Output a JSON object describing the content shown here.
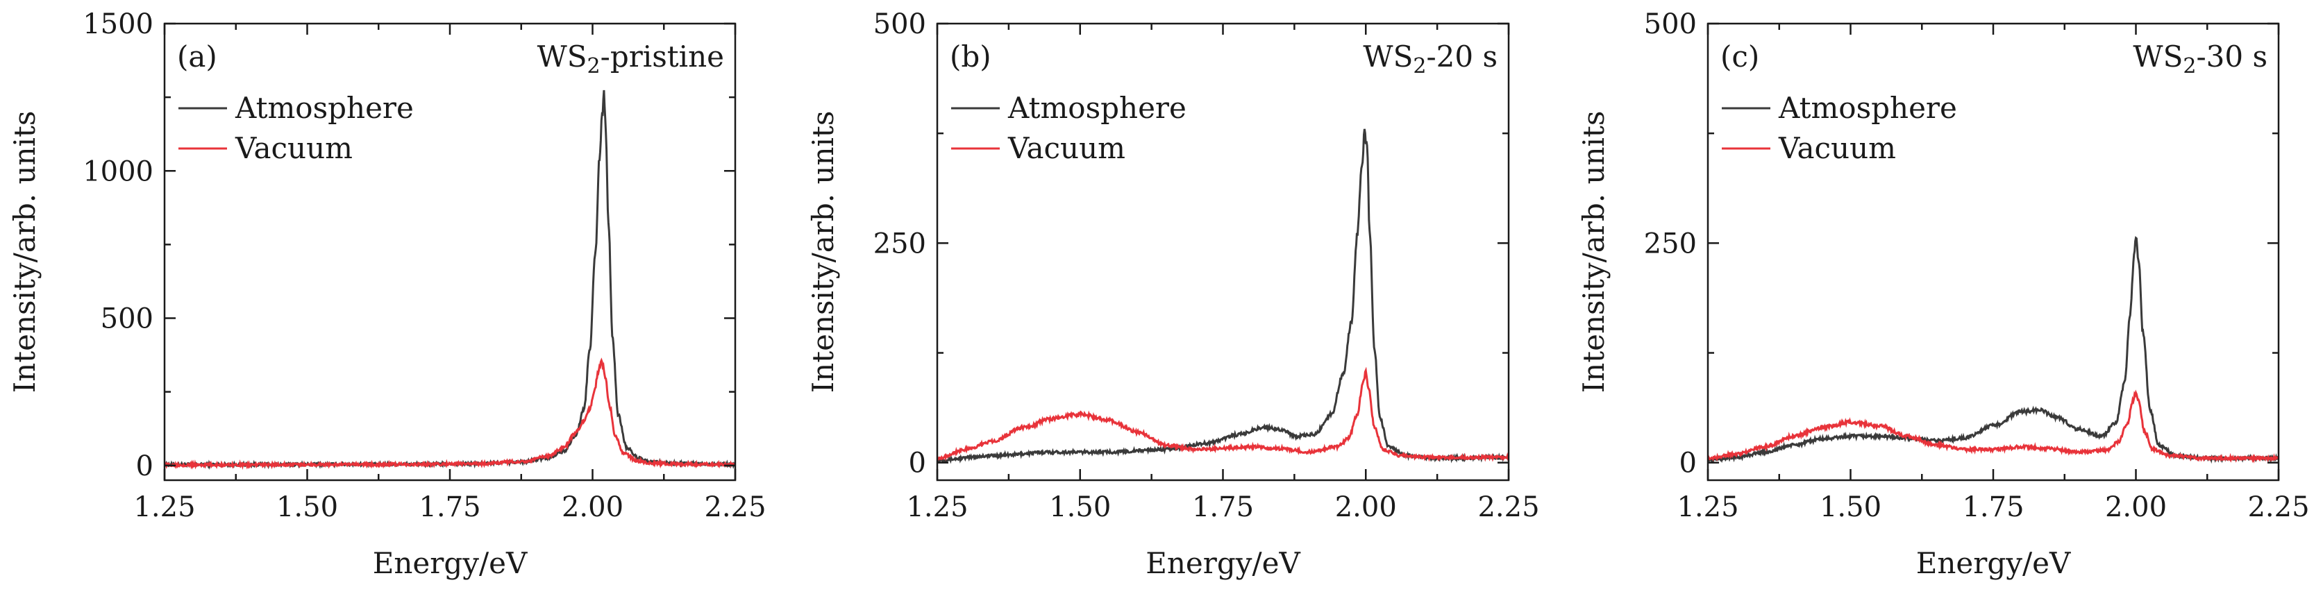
{
  "figure": {
    "colors": {
      "atmosphere": "#3a3a3a",
      "vacuum": "#e8333a",
      "axis": "#1a1a1a"
    }
  },
  "chart_data": [
    {
      "type": "line",
      "panel_label": "(a)",
      "sample_label": "WS",
      "sample_sub": "2",
      "sample_suffix": "-pristine",
      "xlabel": "Energy/eV",
      "ylabel": "Intensity/arb. units",
      "xlim": [
        1.25,
        2.25
      ],
      "ylim": [
        -50,
        1500
      ],
      "xticks": [
        1.25,
        1.5,
        1.75,
        2.0,
        2.25
      ],
      "xtick_labels": [
        "1.25",
        "1.50",
        "1.75",
        "2.00",
        "2.25"
      ],
      "yticks": [
        0,
        500,
        1000,
        1500
      ],
      "ytick_labels": [
        "0",
        "500",
        "1000",
        "1500"
      ],
      "legend": {
        "position": "top-left",
        "entries": [
          "Atmosphere",
          "Vacuum"
        ]
      },
      "series": [
        {
          "name": "Atmosphere",
          "color": "#3a3a3a",
          "x": [
            1.25,
            1.4,
            1.55,
            1.7,
            1.8,
            1.88,
            1.92,
            1.95,
            1.97,
            1.985,
            1.995,
            2.005,
            2.012,
            2.017,
            2.02,
            2.023,
            2.028,
            2.035,
            2.045,
            2.06,
            2.08,
            2.1,
            2.15,
            2.25
          ],
          "y": [
            3,
            3,
            4,
            4,
            6,
            12,
            25,
            50,
            100,
            190,
            390,
            720,
            1040,
            1190,
            1265,
            1150,
            820,
            430,
            170,
            60,
            25,
            12,
            6,
            4
          ]
        },
        {
          "name": "Vacuum",
          "color": "#e8333a",
          "x": [
            1.25,
            1.4,
            1.55,
            1.7,
            1.8,
            1.88,
            1.92,
            1.95,
            1.97,
            1.985,
            1.995,
            2.003,
            2.01,
            2.015,
            2.018,
            2.022,
            2.03,
            2.04,
            2.055,
            2.08,
            2.1,
            2.15,
            2.25
          ],
          "y": [
            2,
            2,
            3,
            4,
            6,
            14,
            30,
            60,
            110,
            150,
            190,
            250,
            320,
            350,
            340,
            300,
            200,
            100,
            40,
            15,
            8,
            5,
            3
          ]
        }
      ]
    },
    {
      "type": "line",
      "panel_label": "(b)",
      "sample_label": "WS",
      "sample_sub": "2",
      "sample_suffix": "-20 s",
      "xlabel": "Energy/eV",
      "ylabel": "Intensity/arb. units",
      "xlim": [
        1.25,
        2.25
      ],
      "ylim": [
        -20,
        500
      ],
      "xticks": [
        1.25,
        1.5,
        1.75,
        2.0,
        2.25
      ],
      "xtick_labels": [
        "1.25",
        "1.50",
        "1.75",
        "2.00",
        "2.25"
      ],
      "yticks": [
        0,
        250,
        500
      ],
      "ytick_labels": [
        "0",
        "250",
        "500"
      ],
      "legend": {
        "position": "top-left",
        "entries": [
          "Atmosphere",
          "Vacuum"
        ]
      },
      "series": [
        {
          "name": "Atmosphere",
          "color": "#3a3a3a",
          "x": [
            1.25,
            1.35,
            1.45,
            1.55,
            1.65,
            1.72,
            1.78,
            1.82,
            1.85,
            1.88,
            1.91,
            1.94,
            1.96,
            1.975,
            1.985,
            1.993,
            1.998,
            2.002,
            2.007,
            2.015,
            2.025,
            2.04,
            2.07,
            2.12,
            2.25
          ],
          "y": [
            3,
            8,
            12,
            12,
            15,
            22,
            32,
            40,
            38,
            30,
            32,
            55,
            100,
            160,
            260,
            340,
            375,
            360,
            260,
            130,
            50,
            18,
            8,
            5,
            6
          ]
        },
        {
          "name": "Vacuum",
          "color": "#e8333a",
          "x": [
            1.25,
            1.3,
            1.35,
            1.4,
            1.45,
            1.5,
            1.55,
            1.6,
            1.65,
            1.7,
            1.75,
            1.8,
            1.85,
            1.9,
            1.95,
            1.97,
            1.985,
            1.995,
            2.0,
            2.005,
            2.015,
            2.03,
            2.06,
            2.12,
            2.25
          ],
          "y": [
            5,
            15,
            25,
            40,
            50,
            55,
            48,
            35,
            20,
            15,
            16,
            18,
            16,
            12,
            18,
            28,
            55,
            90,
            103,
            85,
            40,
            15,
            8,
            6,
            6
          ]
        }
      ]
    },
    {
      "type": "line",
      "panel_label": "(c)",
      "sample_label": "WS",
      "sample_sub": "2",
      "sample_suffix": "-30 s",
      "xlabel": "Energy/eV",
      "ylabel": "Intensity/arb. units",
      "xlim": [
        1.25,
        2.25
      ],
      "ylim": [
        -20,
        500
      ],
      "xticks": [
        1.25,
        1.5,
        1.75,
        2.0,
        2.25
      ],
      "xtick_labels": [
        "1.25",
        "1.50",
        "1.75",
        "2.00",
        "2.25"
      ],
      "yticks": [
        0,
        250,
        500
      ],
      "ytick_labels": [
        "0",
        "250",
        "500"
      ],
      "legend": {
        "position": "top-left",
        "entries": [
          "Atmosphere",
          "Vacuum"
        ]
      },
      "series": [
        {
          "name": "Atmosphere",
          "color": "#3a3a3a",
          "x": [
            1.25,
            1.3,
            1.35,
            1.4,
            1.45,
            1.5,
            1.55,
            1.6,
            1.65,
            1.7,
            1.75,
            1.8,
            1.83,
            1.86,
            1.9,
            1.94,
            1.965,
            1.98,
            1.99,
            1.997,
            2.0,
            2.005,
            2.012,
            2.025,
            2.04,
            2.07,
            2.12,
            2.25
          ],
          "y": [
            3,
            6,
            12,
            20,
            27,
            30,
            30,
            28,
            25,
            28,
            42,
            58,
            60,
            52,
            38,
            30,
            45,
            90,
            170,
            235,
            255,
            230,
            150,
            60,
            20,
            8,
            5,
            5
          ]
        },
        {
          "name": "Vacuum",
          "color": "#e8333a",
          "x": [
            1.25,
            1.3,
            1.35,
            1.4,
            1.45,
            1.5,
            1.55,
            1.6,
            1.65,
            1.7,
            1.75,
            1.8,
            1.85,
            1.9,
            1.95,
            1.97,
            1.985,
            1.995,
            2.0,
            2.005,
            2.015,
            2.03,
            2.06,
            2.12,
            2.25
          ],
          "y": [
            5,
            10,
            18,
            30,
            40,
            46,
            42,
            30,
            20,
            15,
            15,
            18,
            16,
            12,
            14,
            24,
            45,
            70,
            80,
            70,
            35,
            15,
            8,
            5,
            5
          ]
        }
      ]
    }
  ]
}
